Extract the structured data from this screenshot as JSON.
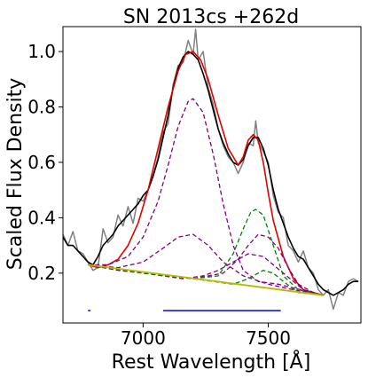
{
  "chart_data": {
    "type": "line",
    "title": "SN 2013cs  +262d",
    "xlabel": "Rest Wavelength [Å]",
    "ylabel": "Scaled Flux Density",
    "xlim": [
      6680,
      7870
    ],
    "ylim": [
      0.02,
      1.09
    ],
    "xticks": [
      7000,
      7500
    ],
    "yticks": [
      0.2,
      0.4,
      0.6,
      0.8,
      1.0
    ],
    "xtick_labels": [
      "7000",
      "7500"
    ],
    "ytick_labels": [
      "0.2",
      "0.4",
      "0.6",
      "0.8",
      "1.0"
    ],
    "grid": false,
    "legend": "none",
    "continuum": {
      "color": "#b8b800",
      "x": [
        6780,
        7720
      ],
      "y": [
        0.23,
        0.12
      ]
    },
    "series": [
      {
        "style": "solid",
        "color": "#808080",
        "x": [
          6680,
          6700,
          6720,
          6740,
          6760,
          6780,
          6800,
          6820,
          6840,
          6860,
          6880,
          6900,
          6920,
          6940,
          6960,
          6980,
          7000,
          7020,
          7040,
          7060,
          7080,
          7100,
          7120,
          7140,
          7160,
          7180,
          7200,
          7210,
          7220,
          7240,
          7260,
          7280,
          7300,
          7320,
          7340,
          7360,
          7380,
          7400,
          7420,
          7440,
          7450,
          7460,
          7480,
          7500,
          7520,
          7540,
          7560,
          7580,
          7600,
          7620,
          7640,
          7660,
          7680,
          7700,
          7720,
          7740,
          7760,
          7780,
          7800,
          7820,
          7840,
          7860
        ],
        "values": [
          0.34,
          0.3,
          0.35,
          0.28,
          0.27,
          0.24,
          0.21,
          0.22,
          0.36,
          0.31,
          0.33,
          0.41,
          0.37,
          0.44,
          0.38,
          0.47,
          0.46,
          0.5,
          0.55,
          0.62,
          0.71,
          0.74,
          0.88,
          0.95,
          0.96,
          1.04,
          0.99,
          1.08,
          0.97,
          1.0,
          0.87,
          0.81,
          0.72,
          0.66,
          0.62,
          0.6,
          0.56,
          0.6,
          0.67,
          0.66,
          0.75,
          0.67,
          0.64,
          0.6,
          0.48,
          0.42,
          0.4,
          0.3,
          0.28,
          0.24,
          0.28,
          0.22,
          0.2,
          0.14,
          0.12,
          0.14,
          0.07,
          0.13,
          0.12,
          0.17,
          0.18,
          0.17
        ]
      },
      {
        "style": "solid",
        "color": "#000000",
        "x": [
          6680,
          6700,
          6720,
          6740,
          6760,
          6780,
          6800,
          6820,
          6840,
          6860,
          6880,
          6900,
          6920,
          6940,
          6960,
          6980,
          7000,
          7020,
          7040,
          7060,
          7080,
          7100,
          7120,
          7140,
          7160,
          7180,
          7200,
          7220,
          7240,
          7260,
          7280,
          7300,
          7320,
          7340,
          7360,
          7380,
          7400,
          7420,
          7440,
          7460,
          7480,
          7500,
          7520,
          7540,
          7560,
          7580,
          7600,
          7620,
          7640,
          7660,
          7680,
          7700,
          7720,
          7740,
          7760,
          7780,
          7800,
          7820,
          7840,
          7860
        ],
        "values": [
          0.33,
          0.3,
          0.3,
          0.28,
          0.26,
          0.24,
          0.23,
          0.26,
          0.3,
          0.32,
          0.34,
          0.37,
          0.39,
          0.41,
          0.43,
          0.45,
          0.48,
          0.5,
          0.55,
          0.61,
          0.69,
          0.77,
          0.87,
          0.94,
          0.98,
          1.0,
          0.99,
          0.97,
          0.92,
          0.86,
          0.79,
          0.72,
          0.67,
          0.63,
          0.6,
          0.59,
          0.61,
          0.66,
          0.69,
          0.69,
          0.65,
          0.59,
          0.5,
          0.43,
          0.38,
          0.33,
          0.29,
          0.26,
          0.25,
          0.22,
          0.19,
          0.16,
          0.14,
          0.13,
          0.12,
          0.13,
          0.14,
          0.16,
          0.17,
          0.17
        ]
      },
      {
        "style": "solid",
        "color": "#e00000",
        "x": [
          6780,
          6820,
          6860,
          6900,
          6940,
          6980,
          7020,
          7060,
          7100,
          7140,
          7170,
          7200,
          7230,
          7260,
          7300,
          7340,
          7380,
          7400,
          7420,
          7440,
          7460,
          7480,
          7500,
          7520,
          7560,
          7600,
          7640,
          7680,
          7720
        ],
        "values": [
          0.23,
          0.22,
          0.23,
          0.25,
          0.3,
          0.38,
          0.5,
          0.65,
          0.8,
          0.93,
          0.99,
          1.0,
          0.97,
          0.9,
          0.77,
          0.65,
          0.59,
          0.62,
          0.68,
          0.7,
          0.68,
          0.6,
          0.49,
          0.39,
          0.26,
          0.18,
          0.14,
          0.13,
          0.12
        ]
      },
      {
        "style": "dashed",
        "color": "#800080",
        "x": [
          6780,
          6860,
          6940,
          7000,
          7060,
          7100,
          7140,
          7180,
          7200,
          7240,
          7280,
          7320,
          7360,
          7400,
          7460,
          7540,
          7720
        ],
        "values": [
          0.23,
          0.23,
          0.26,
          0.33,
          0.46,
          0.59,
          0.73,
          0.82,
          0.83,
          0.78,
          0.63,
          0.45,
          0.3,
          0.21,
          0.17,
          0.16,
          0.12
        ]
      },
      {
        "style": "dashed",
        "color": "#800080",
        "x": [
          6780,
          6900,
          7000,
          7080,
          7140,
          7200,
          7260,
          7320,
          7400,
          7500,
          7600,
          7720
        ],
        "values": [
          0.23,
          0.22,
          0.24,
          0.29,
          0.33,
          0.34,
          0.3,
          0.24,
          0.19,
          0.16,
          0.14,
          0.12
        ]
      },
      {
        "style": "dashed",
        "color": "#800080",
        "x": [
          6780,
          6900,
          7000,
          7080,
          7160,
          7240,
          7300,
          7360,
          7420,
          7480,
          7560,
          7640,
          7720
        ],
        "values": [
          0.23,
          0.21,
          0.2,
          0.19,
          0.18,
          0.19,
          0.21,
          0.24,
          0.27,
          0.26,
          0.2,
          0.14,
          0.12
        ]
      },
      {
        "style": "dashed",
        "color": "#800080",
        "x": [
          6780,
          7000,
          7200,
          7320,
          7380,
          7420,
          7460,
          7500,
          7540,
          7580,
          7620,
          7680,
          7720
        ],
        "values": [
          0.23,
          0.2,
          0.18,
          0.2,
          0.25,
          0.3,
          0.34,
          0.33,
          0.29,
          0.22,
          0.16,
          0.13,
          0.12
        ]
      },
      {
        "style": "dashed",
        "color": "#008000",
        "x": [
          6780,
          7000,
          7200,
          7300,
          7360,
          7400,
          7430,
          7450,
          7480,
          7520,
          7560,
          7620,
          7720
        ],
        "values": [
          0.23,
          0.2,
          0.18,
          0.19,
          0.27,
          0.36,
          0.42,
          0.43,
          0.41,
          0.3,
          0.19,
          0.14,
          0.12
        ]
      },
      {
        "style": "dashed",
        "color": "#008000",
        "x": [
          6780,
          7000,
          7200,
          7360,
          7420,
          7460,
          7480,
          7520,
          7560,
          7620,
          7720
        ],
        "values": [
          0.23,
          0.2,
          0.18,
          0.16,
          0.18,
          0.2,
          0.21,
          0.2,
          0.17,
          0.13,
          0.12
        ]
      }
    ],
    "ranges": [
      {
        "color": "#0000ff",
        "x": [
          6780,
          6790
        ],
        "y": 0.065
      },
      {
        "color": "#0000ff",
        "x": [
          7080,
          7550
        ],
        "y": 0.065
      }
    ]
  }
}
